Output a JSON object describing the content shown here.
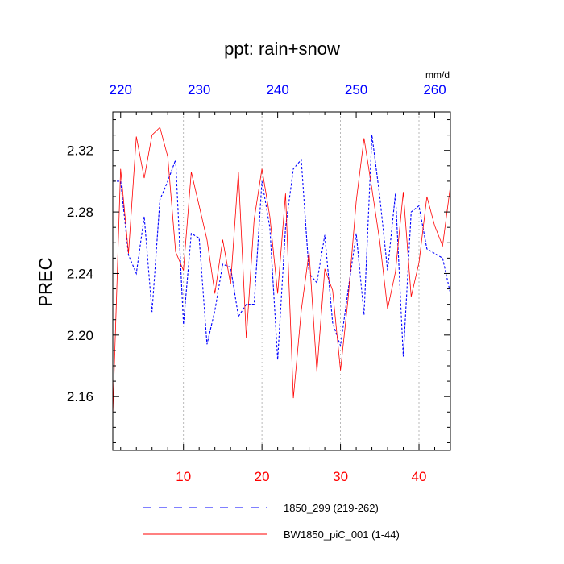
{
  "chart_data": {
    "type": "line",
    "title": "ppt: rain+snow",
    "ylabel": "PREC",
    "units_label": "mm/d",
    "ylim": [
      2.125,
      2.345
    ],
    "yticks": [
      2.16,
      2.2,
      2.24,
      2.28,
      2.32
    ],
    "ytick_labels": [
      "2.16",
      "2.20",
      "2.24",
      "2.28",
      "2.32"
    ],
    "yminor_step": 0.01,
    "bottom_axis": {
      "xlim": [
        1,
        44
      ],
      "ticks": [
        10,
        20,
        30,
        40
      ],
      "tick_labels": [
        "10",
        "20",
        "30",
        "40"
      ],
      "color": "#ff0000"
    },
    "top_axis": {
      "xlim": [
        219,
        262
      ],
      "ticks": [
        220,
        230,
        240,
        250,
        260
      ],
      "tick_labels": [
        "220",
        "230",
        "240",
        "250",
        "260"
      ],
      "color": "#0000ff"
    },
    "grid": "vertical dotted at bottom ticks",
    "series": [
      {
        "name": "1850_299 (219-262)",
        "color": "#0000ff",
        "dash": "dashed",
        "x": [
          1,
          2,
          3,
          4,
          5,
          6,
          7,
          8,
          9,
          10,
          11,
          12,
          13,
          14,
          15,
          16,
          17,
          18,
          19,
          20,
          21,
          22,
          23,
          24,
          25,
          26,
          27,
          28,
          29,
          30,
          31,
          32,
          33,
          34,
          35,
          36,
          37,
          38,
          39,
          40,
          41,
          42,
          43,
          44
        ],
        "y": [
          2.3,
          2.3,
          2.252,
          2.24,
          2.277,
          2.215,
          2.288,
          2.3,
          2.314,
          2.207,
          2.266,
          2.263,
          2.194,
          2.216,
          2.246,
          2.244,
          2.212,
          2.22,
          2.22,
          2.3,
          2.27,
          2.184,
          2.27,
          2.308,
          2.314,
          2.24,
          2.234,
          2.265,
          2.208,
          2.193,
          2.23,
          2.266,
          2.213,
          2.33,
          2.29,
          2.242,
          2.292,
          2.186,
          2.28,
          2.284,
          2.256,
          2.253,
          2.25,
          2.227
        ]
      },
      {
        "name": "BW1850_piC_001 (1-44)",
        "color": "#ff0000",
        "dash": "solid",
        "x": [
          1,
          2,
          3,
          4,
          5,
          6,
          7,
          8,
          9,
          10,
          11,
          12,
          13,
          14,
          15,
          16,
          17,
          18,
          19,
          20,
          21,
          22,
          23,
          24,
          25,
          26,
          27,
          28,
          29,
          30,
          31,
          32,
          33,
          34,
          35,
          36,
          37,
          38,
          39,
          40,
          41,
          42,
          43,
          44
        ],
        "y": [
          2.148,
          2.308,
          2.253,
          2.329,
          2.302,
          2.33,
          2.335,
          2.316,
          2.254,
          2.242,
          2.306,
          2.284,
          2.262,
          2.227,
          2.262,
          2.233,
          2.306,
          2.198,
          2.275,
          2.308,
          2.277,
          2.227,
          2.292,
          2.159,
          2.216,
          2.254,
          2.176,
          2.243,
          2.229,
          2.177,
          2.225,
          2.287,
          2.328,
          2.295,
          2.261,
          2.217,
          2.241,
          2.293,
          2.225,
          2.247,
          2.29,
          2.271,
          2.258,
          2.297
        ]
      }
    ],
    "legend_placement": "bottom"
  }
}
